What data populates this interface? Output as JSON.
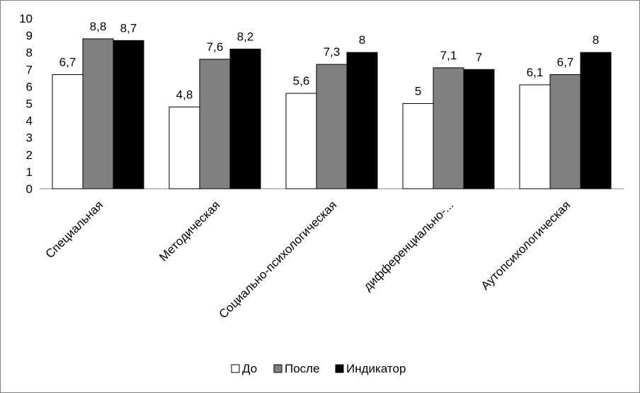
{
  "chart_data": {
    "type": "bar",
    "categories": [
      "Специальная",
      "Методическая",
      "Социально-психологическая",
      "дифференциально-...",
      "Аутопсихологическая"
    ],
    "series": [
      {
        "name": "До",
        "values": [
          6.7,
          4.8,
          5.6,
          5,
          6.1
        ],
        "labels": [
          "6,7",
          "4,8",
          "5,6",
          "5",
          "6,1"
        ],
        "color": "#ffffff"
      },
      {
        "name": "После",
        "values": [
          8.8,
          7.6,
          7.3,
          7.1,
          6.7
        ],
        "labels": [
          "8,8",
          "7,6",
          "7,3",
          "7,1",
          "6,7"
        ],
        "color": "#808080"
      },
      {
        "name": "Индикатор",
        "values": [
          8.7,
          8.2,
          8,
          7,
          8
        ],
        "labels": [
          "8,7",
          "8,2",
          "8",
          "7",
          "8"
        ],
        "color": "#000000"
      }
    ],
    "ylim": [
      0,
      10
    ],
    "yticks": [
      "0",
      "1",
      "2",
      "3",
      "4",
      "5",
      "6",
      "7",
      "8",
      "9",
      "10"
    ],
    "grid": false,
    "legend_position": "bottom"
  }
}
